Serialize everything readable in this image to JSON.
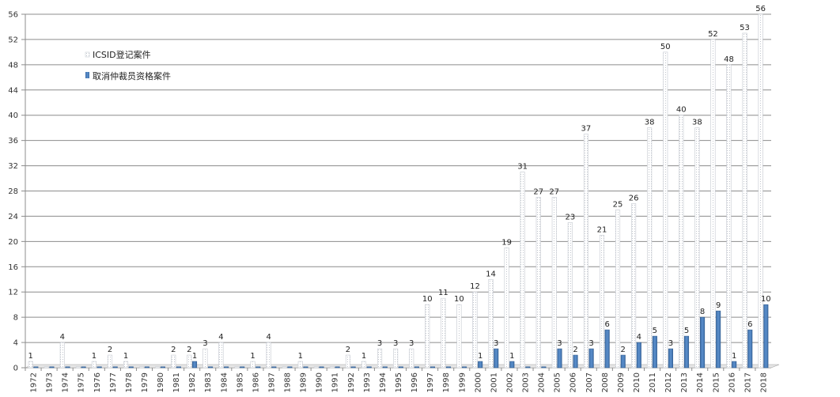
{
  "chart_data": {
    "type": "bar",
    "categories": [
      "1972",
      "1973",
      "1974",
      "1975",
      "1976",
      "1977",
      "1978",
      "1979",
      "1980",
      "1981",
      "1982",
      "1983",
      "1984",
      "1985",
      "1986",
      "1987",
      "1988",
      "1989",
      "1990",
      "1991",
      "1992",
      "1993",
      "1994",
      "1995",
      "1996",
      "1997",
      "1998",
      "1999",
      "2000",
      "2001",
      "2002",
      "2003",
      "2004",
      "2005",
      "2006",
      "2007",
      "2008",
      "2009",
      "2010",
      "2011",
      "2012",
      "2013",
      "2014",
      "2015",
      "2016",
      "2017",
      "2018"
    ],
    "series": [
      {
        "name": "ICSID登记案件",
        "color": "#ffffff",
        "values": [
          1,
          0,
          4,
          0,
          1,
          2,
          1,
          0,
          0,
          2,
          2,
          3,
          4,
          0,
          1,
          4,
          0,
          1,
          0,
          0,
          2,
          1,
          3,
          3,
          3,
          10,
          11,
          10,
          12,
          14,
          19,
          31,
          27,
          27,
          23,
          37,
          21,
          25,
          26,
          38,
          50,
          40,
          38,
          52,
          48,
          53,
          56
        ],
        "labels": [
          "1",
          "",
          "4",
          "",
          "1",
          "2",
          "1",
          "",
          "",
          "2",
          "2",
          "3",
          "4",
          "",
          "1",
          "4",
          "",
          "1",
          "",
          "",
          "2",
          "1",
          "3",
          "3",
          "3",
          "10",
          "11",
          "10",
          "12",
          "14",
          "19",
          "31",
          "27",
          "27",
          "23",
          "37",
          "21",
          "25",
          "26",
          "38",
          "50",
          "40",
          "38",
          "52",
          "48",
          "53",
          "56"
        ]
      },
      {
        "name": "取消仲裁员资格案件",
        "color": "#4f81bd",
        "values": [
          0,
          0,
          0,
          0,
          0,
          0,
          0,
          0,
          0,
          0,
          1,
          0,
          0,
          0,
          0,
          0,
          0,
          0,
          0,
          0,
          0,
          0,
          0,
          0,
          0,
          0,
          0,
          0,
          1,
          3,
          1,
          0,
          0,
          3,
          2,
          3,
          6,
          2,
          4,
          5,
          3,
          5,
          8,
          9,
          1,
          6,
          10
        ],
        "labels": [
          "",
          "",
          "",
          "",
          "",
          "",
          "",
          "",
          "",
          "",
          "1",
          "",
          "",
          "",
          "",
          "",
          "",
          "",
          "",
          "",
          "",
          "",
          "",
          "",
          "",
          "",
          "",
          "",
          "1",
          "3",
          "1",
          "",
          "",
          "3",
          "2",
          "3",
          "6",
          "2",
          "4",
          "5",
          "3",
          "5",
          "8",
          "9",
          "1",
          "6",
          "10"
        ]
      }
    ],
    "ylim": [
      0,
      56
    ],
    "yticks": [
      0,
      4,
      8,
      12,
      16,
      20,
      24,
      28,
      32,
      36,
      40,
      44,
      48,
      52,
      56
    ],
    "grid": true,
    "legend_position": "top-left"
  }
}
